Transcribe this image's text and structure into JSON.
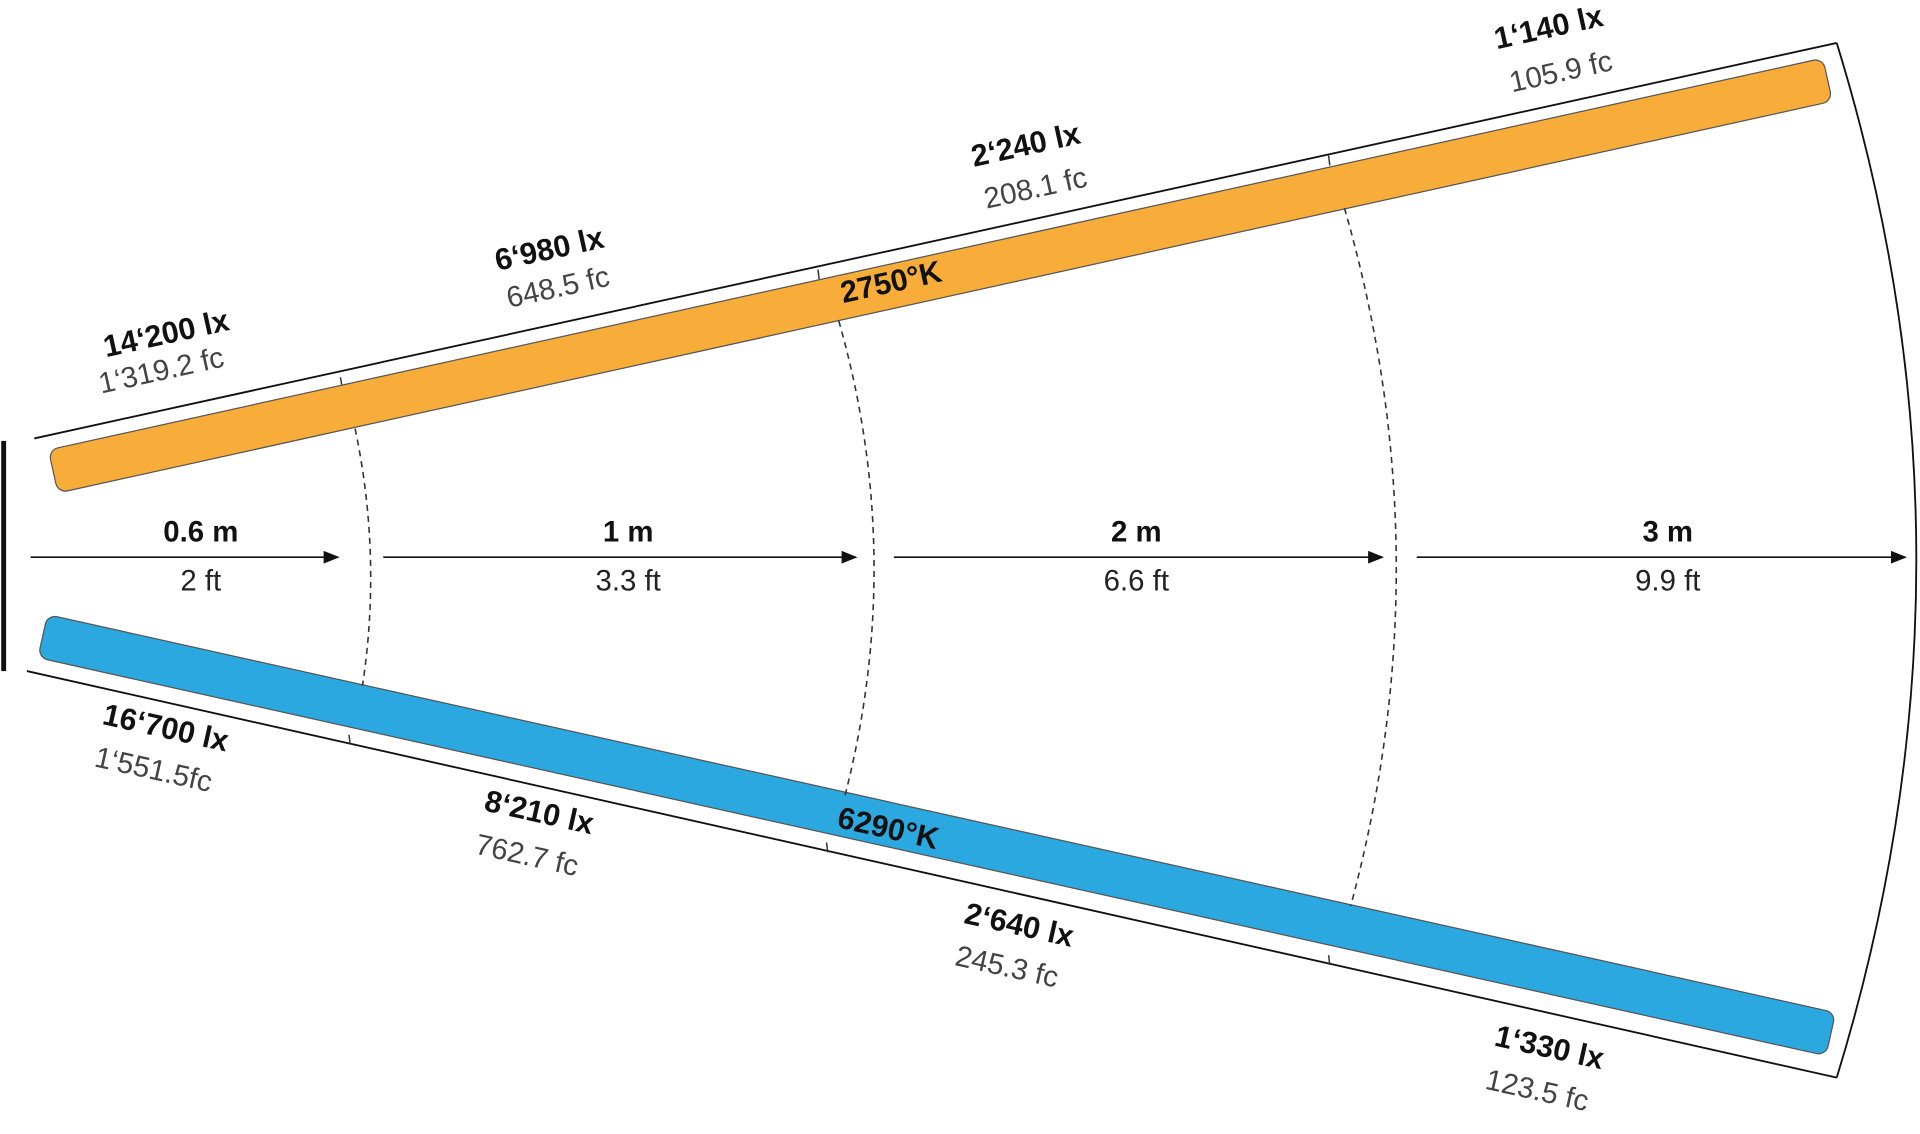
{
  "distances": [
    {
      "metric": "0.6 m",
      "imperial": "2 ft"
    },
    {
      "metric": "1 m",
      "imperial": "3.3 ft"
    },
    {
      "metric": "2 m",
      "imperial": "6.6 ft"
    },
    {
      "metric": "3 m",
      "imperial": "9.9 ft"
    }
  ],
  "warm": {
    "label": "2750°K",
    "readings": [
      {
        "lux": "14‘200 lx",
        "fc": "1‘319.2 fc"
      },
      {
        "lux": "6‘980 lx",
        "fc": "648.5 fc"
      },
      {
        "lux": "2‘240 lx",
        "fc": "208.1 fc"
      },
      {
        "lux": "1‘140 lx",
        "fc": "105.9 fc"
      }
    ]
  },
  "cool": {
    "label": "6290°K",
    "readings": [
      {
        "lux": "16‘700 lx",
        "fc": "1‘551.5fc"
      },
      {
        "lux": "8‘210 lx",
        "fc": "762.7 fc"
      },
      {
        "lux": "2‘640 lx",
        "fc": "245.3 fc"
      },
      {
        "lux": "1‘330 lx",
        "fc": "123.5 fc"
      }
    ]
  }
}
